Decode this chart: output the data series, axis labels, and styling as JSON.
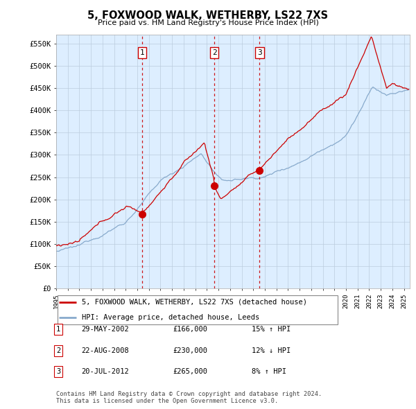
{
  "title": "5, FOXWOOD WALK, WETHERBY, LS22 7XS",
  "subtitle": "Price paid vs. HM Land Registry's House Price Index (HPI)",
  "ylabel_ticks": [
    "£0",
    "£50K",
    "£100K",
    "£150K",
    "£200K",
    "£250K",
    "£300K",
    "£350K",
    "£400K",
    "£450K",
    "£500K",
    "£550K"
  ],
  "ytick_values": [
    0,
    50000,
    100000,
    150000,
    200000,
    250000,
    300000,
    350000,
    400000,
    450000,
    500000,
    550000
  ],
  "xmin": 1995.0,
  "xmax": 2025.5,
  "ymin": 0,
  "ymax": 570000,
  "transactions": [
    {
      "num": 1,
      "date": "29-MAY-2002",
      "price": 166000,
      "pct": "15%",
      "dir": "↑",
      "x_year": 2002.4
    },
    {
      "num": 2,
      "date": "22-AUG-2008",
      "price": 230000,
      "pct": "12%",
      "dir": "↓",
      "x_year": 2008.64
    },
    {
      "num": 3,
      "date": "20-JUL-2012",
      "price": 265000,
      "pct": "8%",
      "dir": "↑",
      "x_year": 2012.55
    }
  ],
  "legend_line1": "5, FOXWOOD WALK, WETHERBY, LS22 7XS (detached house)",
  "legend_line2": "HPI: Average price, detached house, Leeds",
  "footnote": "Contains HM Land Registry data © Crown copyright and database right 2024.\nThis data is licensed under the Open Government Licence v3.0.",
  "line_color_red": "#cc0000",
  "line_color_blue": "#88aacc",
  "vline_color": "#cc0000",
  "chart_bg": "#ddeeff",
  "grid_color": "#bbccdd",
  "background_color": "#ffffff"
}
